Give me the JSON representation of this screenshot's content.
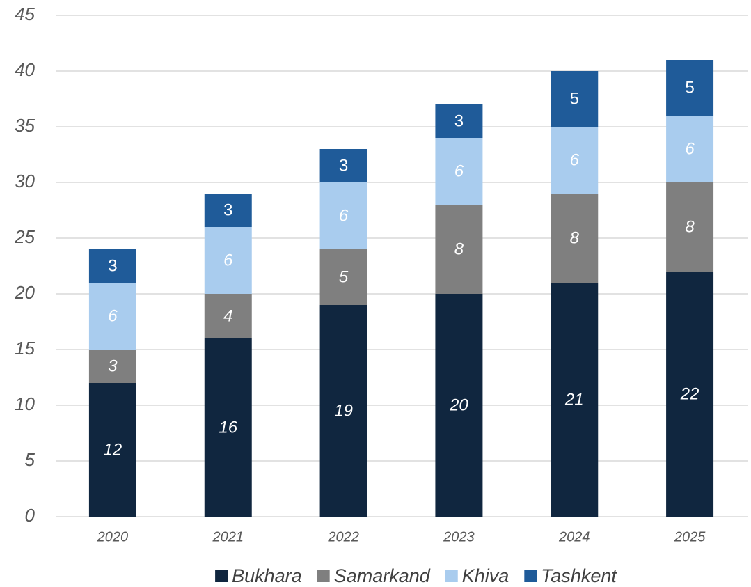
{
  "chart_data": {
    "type": "stacked_bar",
    "categories": [
      "2020",
      "2021",
      "2022",
      "2023",
      "2024",
      "2025"
    ],
    "series": [
      {
        "name": "Bukhara",
        "color": "#10263f",
        "values": [
          12,
          16,
          19,
          20,
          21,
          22
        ]
      },
      {
        "name": "Samarkand",
        "color": "#7f7f7f",
        "values": [
          3,
          4,
          5,
          8,
          8,
          8
        ]
      },
      {
        "name": "Khiva",
        "color": "#a9ccee",
        "values": [
          6,
          6,
          6,
          6,
          6,
          6
        ]
      },
      {
        "name": "Tashkent",
        "color": "#1f5b99",
        "values": [
          3,
          3,
          3,
          3,
          5,
          5
        ]
      }
    ],
    "ylim": [
      0,
      45
    ],
    "yticks": [
      0,
      5,
      10,
      15,
      20,
      25,
      30,
      35,
      40,
      45
    ],
    "grid": true,
    "legend": "bottom"
  }
}
